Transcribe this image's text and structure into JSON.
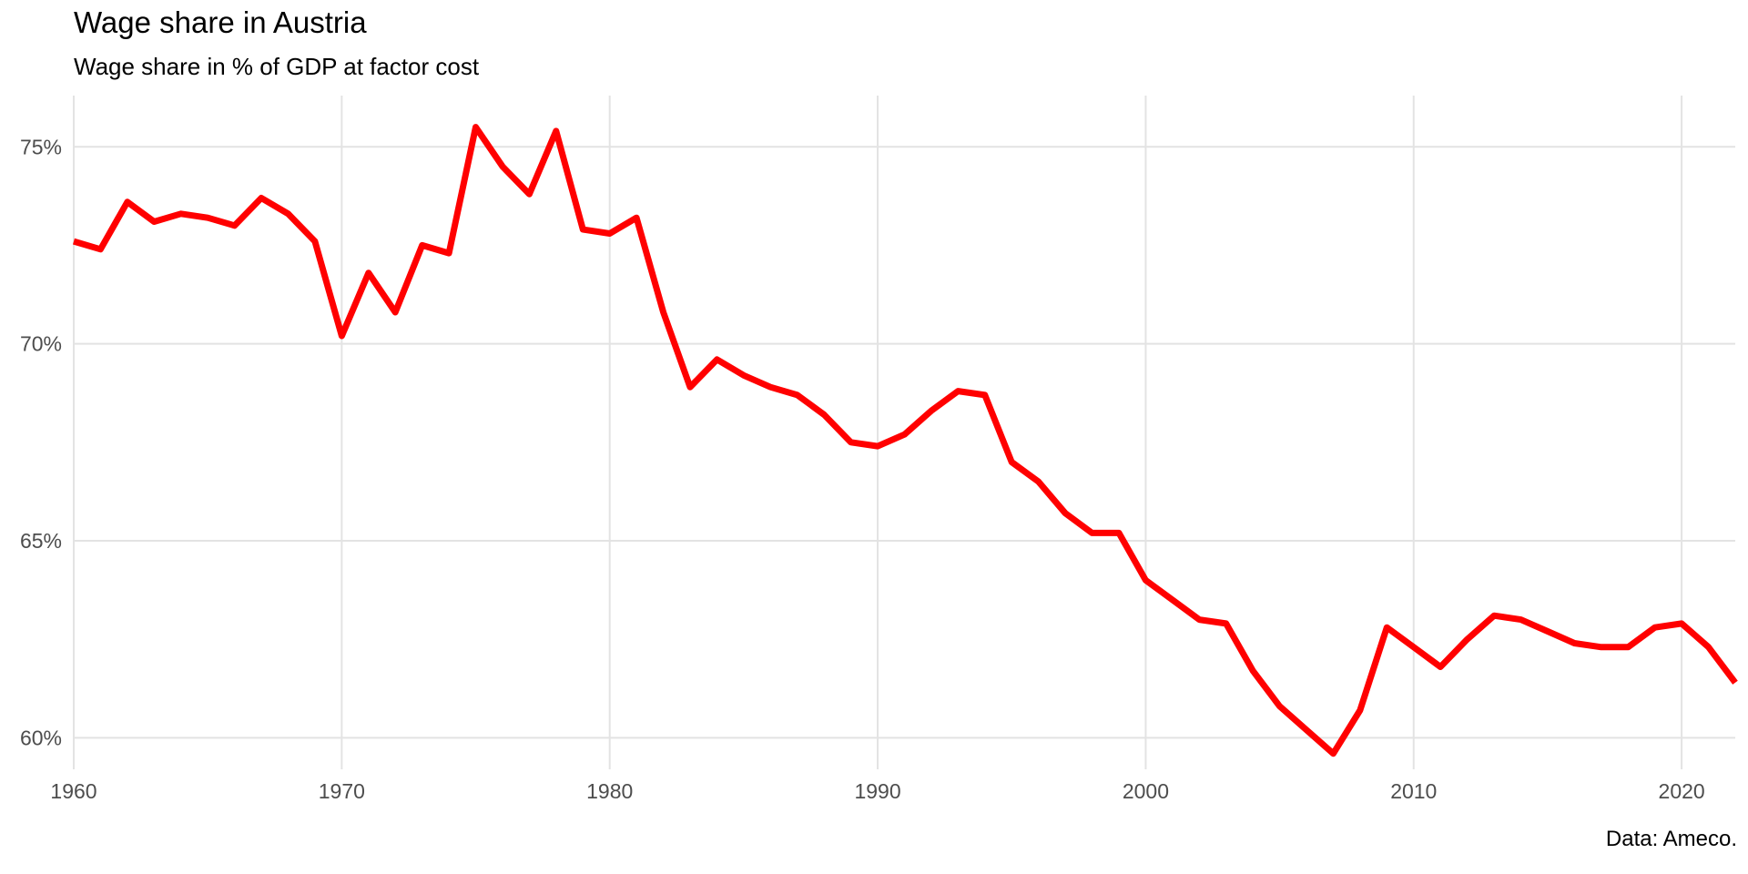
{
  "chart_data": {
    "type": "line",
    "title": "Wage share in Austria",
    "subtitle": "Wage share in % of GDP at factor cost",
    "caption": "Data: Ameco.",
    "xlabel": "",
    "ylabel": "",
    "xlim": [
      1960,
      2022
    ],
    "ylim": [
      59.2,
      76.3
    ],
    "x_ticks": [
      1960,
      1970,
      1980,
      1990,
      2000,
      2010,
      2020
    ],
    "x_tick_labels": [
      "1960",
      "1970",
      "1980",
      "1990",
      "2000",
      "2010",
      "2020"
    ],
    "y_ticks": [
      60,
      65,
      70,
      75
    ],
    "y_tick_labels": [
      "60%",
      "65%",
      "70%",
      "75%"
    ],
    "grid": true,
    "legend": "none",
    "series": [
      {
        "color": "#ff0000",
        "x": [
          1960,
          1961,
          1962,
          1963,
          1964,
          1965,
          1966,
          1967,
          1968,
          1969,
          1970,
          1971,
          1972,
          1973,
          1974,
          1975,
          1976,
          1977,
          1978,
          1979,
          1980,
          1981,
          1982,
          1983,
          1984,
          1985,
          1986,
          1987,
          1988,
          1989,
          1990,
          1991,
          1992,
          1993,
          1994,
          1995,
          1996,
          1997,
          1998,
          1999,
          2000,
          2001,
          2002,
          2003,
          2004,
          2005,
          2006,
          2007,
          2008,
          2009,
          2010,
          2011,
          2012,
          2013,
          2014,
          2015,
          2016,
          2017,
          2018,
          2019,
          2020,
          2021,
          2022
        ],
        "values": [
          72.6,
          72.4,
          73.6,
          73.1,
          73.3,
          73.2,
          73.0,
          73.7,
          73.3,
          72.6,
          70.2,
          71.8,
          70.8,
          72.5,
          72.3,
          75.5,
          74.5,
          73.8,
          75.4,
          72.9,
          72.8,
          73.2,
          70.8,
          68.9,
          69.6,
          69.2,
          68.9,
          68.7,
          68.2,
          67.5,
          67.4,
          67.7,
          68.3,
          68.8,
          68.7,
          67.0,
          66.5,
          65.7,
          65.2,
          65.2,
          64.0,
          63.5,
          63.0,
          62.9,
          61.7,
          60.8,
          60.2,
          59.6,
          60.7,
          62.8,
          62.3,
          61.8,
          62.5,
          63.1,
          63.0,
          62.7,
          62.4,
          62.3,
          62.3,
          62.8,
          62.9,
          62.3,
          61.4
        ]
      }
    ]
  }
}
